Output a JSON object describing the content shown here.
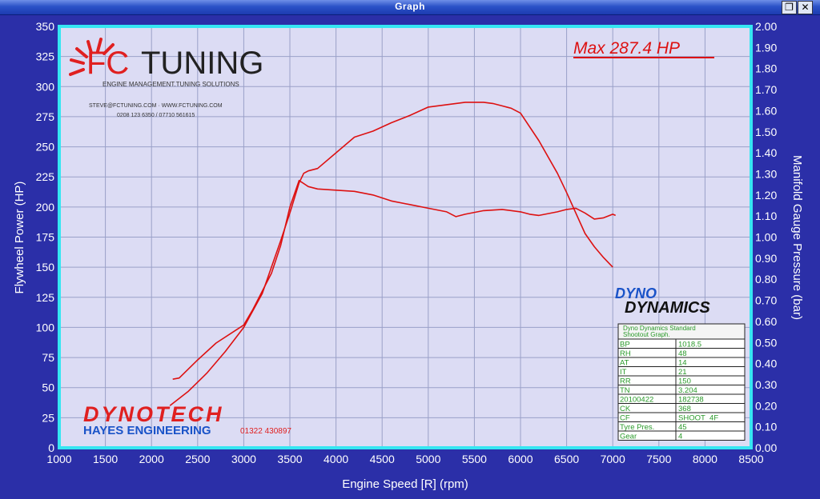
{
  "window": {
    "title": "Graph",
    "restore_icon": "restore-icon",
    "close_icon": "close-icon"
  },
  "chart_data": {
    "type": "line",
    "xlabel": "Engine Speed [R] (rpm)",
    "ylabel_left": "Flywheel Power (HP)",
    "ylabel_right": "Manifold Gauge Pressure (bar)",
    "xlim": [
      1000,
      8500
    ],
    "ylim_left": [
      0,
      350
    ],
    "ylim_right": [
      0.0,
      2.0
    ],
    "x_ticks": [
      "1000",
      "1500",
      "2000",
      "2500",
      "3000",
      "3500",
      "4000",
      "4500",
      "5000",
      "5500",
      "6000",
      "6500",
      "7000",
      "7500",
      "8000",
      "8500"
    ],
    "y_ticks_left": [
      "0",
      "25",
      "50",
      "75",
      "100",
      "125",
      "150",
      "175",
      "200",
      "225",
      "250",
      "275",
      "300",
      "325",
      "350"
    ],
    "y_ticks_right": [
      "0.00",
      "0.10",
      "0.20",
      "0.30",
      "0.40",
      "0.50",
      "0.60",
      "0.70",
      "0.80",
      "0.90",
      "1.00",
      "1.10",
      "1.20",
      "1.30",
      "1.40",
      "1.50",
      "1.60",
      "1.70",
      "1.80",
      "1.90",
      "2.00"
    ],
    "grid": true,
    "series": [
      {
        "axis": "left",
        "color": "#dd1111",
        "x": [
          2200,
          2400,
          2600,
          2800,
          3000,
          3200,
          3400,
          3500,
          3600,
          3650,
          3700,
          3800,
          4000,
          4200,
          4400,
          4600,
          4800,
          5000,
          5200,
          5400,
          5600,
          5700,
          5800,
          5900,
          6000,
          6200,
          6400,
          6500,
          6600,
          6700,
          6800,
          6900,
          7000
        ],
        "y": [
          35,
          47,
          62,
          80,
          100,
          128,
          172,
          195,
          220,
          228,
          230,
          232,
          245,
          258,
          263,
          270,
          276,
          283,
          285,
          287,
          287,
          286,
          284,
          282,
          278,
          255,
          228,
          212,
          195,
          178,
          167,
          158,
          150
        ]
      },
      {
        "axis": "left",
        "color": "#dd1111",
        "x": [
          2230,
          2300,
          2500,
          2700,
          2900,
          3000,
          3100,
          3200,
          3300,
          3400,
          3500,
          3600,
          3700,
          3800,
          4000,
          4200,
          4400,
          4600,
          4800,
          5000,
          5200,
          5300,
          5400,
          5600,
          5800,
          6000,
          6100,
          6200,
          6400,
          6500,
          6600,
          6700,
          6800,
          6900,
          7000,
          7030
        ],
        "y": [
          57,
          58,
          73,
          87,
          97,
          102,
          115,
          130,
          145,
          168,
          200,
          222,
          217,
          215,
          214,
          213,
          210,
          205,
          202,
          199,
          196,
          192,
          194,
          197,
          198,
          196,
          194,
          193,
          196,
          198,
          199,
          195,
          190,
          191,
          194,
          193
        ]
      }
    ],
    "annotation": "Max 287.4 HP"
  },
  "logos": {
    "fc_prefix": "FC",
    "fc_suffix": "TUNING",
    "fc_tagline": "ENGINE MANAGEMENT.TUNING SOLUTIONS",
    "fc_contact1": "STEVE@FCTUNING.COM  ·  WWW.FCTUNING.COM",
    "fc_contact2": "0208 123 6350 / 07710 561615",
    "dynotech": "DYNOTECH",
    "hayes": "HAYES ENGINEERING",
    "hayes_phone": "01322 430897",
    "dyno": "DYNO",
    "dynamics": "DYNAMICS"
  },
  "info_table": {
    "title_line1": "Dyno Dynamics Standard",
    "title_line2": "Shootout Graph.",
    "rows": [
      [
        "BP",
        "1018.5"
      ],
      [
        "RH",
        "48"
      ],
      [
        "AT",
        "14"
      ],
      [
        "IT",
        "21"
      ],
      [
        "RR",
        "150"
      ],
      [
        "TN",
        "3.204"
      ],
      [
        "20100422",
        "182738"
      ],
      [
        "CK",
        "368"
      ],
      [
        "CF",
        "SHOOT_4F"
      ],
      [
        "Tyre Pres.",
        "45"
      ],
      [
        "Gear",
        "4"
      ]
    ]
  }
}
